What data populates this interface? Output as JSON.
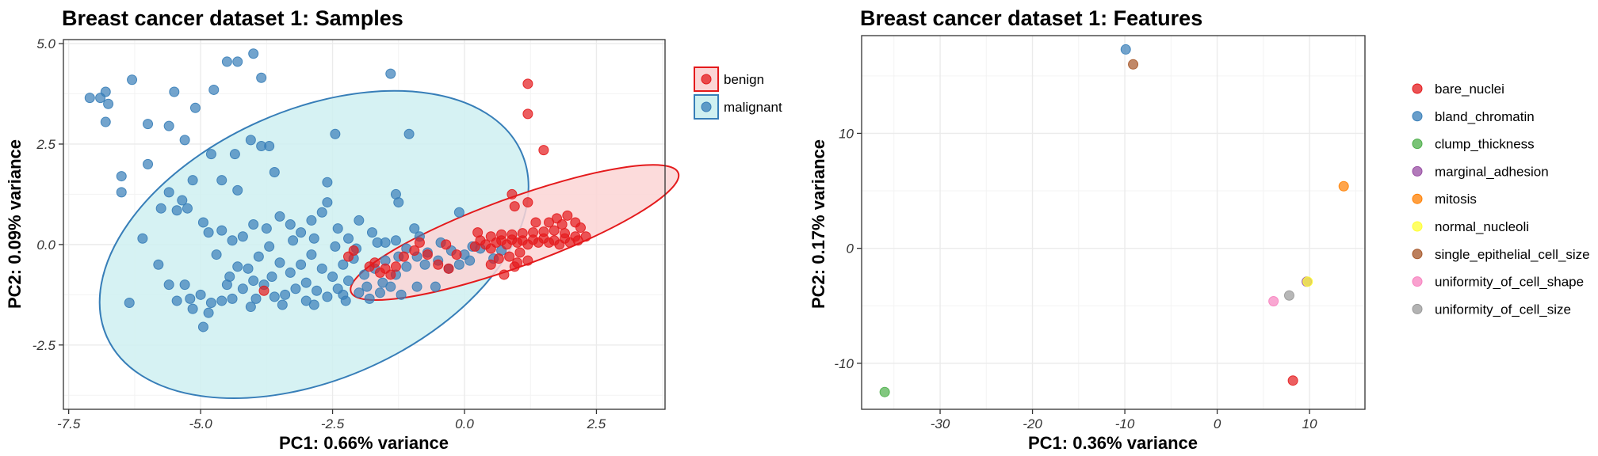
{
  "chart_data": [
    {
      "type": "scatter",
      "title": "Breast cancer dataset 1: Samples",
      "xlabel": "PC1: 0.66% variance",
      "ylabel": "PC2: 0.09% variance",
      "xlim": [
        -7.6,
        3.8
      ],
      "ylim": [
        -4.1,
        5.1
      ],
      "x_ticks": [
        -7.5,
        -5.0,
        -2.5,
        0.0,
        2.5
      ],
      "x_tick_labels": [
        "-7.5",
        "-5.0",
        "-2.5",
        "0.0",
        "2.5"
      ],
      "y_ticks": [
        -2.5,
        0.0,
        2.5,
        5.0
      ],
      "y_tick_labels": [
        "-2.5",
        "0.0",
        "2.5",
        "5.0"
      ],
      "grid": true,
      "legend_position": "right",
      "series": [
        {
          "name": "benign",
          "color": "#e41a1c",
          "fill_color": "#fbd5d5",
          "ellipse": {
            "cx": 0.95,
            "cy": 0.3,
            "rx": 3.3,
            "ry": 0.85,
            "angle_deg": -20
          },
          "points": [
            [
              1.2,
              4.0
            ],
            [
              1.2,
              3.25
            ],
            [
              1.5,
              2.35
            ],
            [
              0.9,
              1.25
            ],
            [
              1.2,
              1.05
            ],
            [
              0.95,
              0.95
            ],
            [
              1.75,
              0.65
            ],
            [
              1.95,
              0.72
            ],
            [
              1.35,
              0.55
            ],
            [
              1.6,
              0.55
            ],
            [
              1.85,
              0.5
            ],
            [
              2.1,
              0.55
            ],
            [
              2.2,
              0.42
            ],
            [
              2.3,
              0.2
            ],
            [
              2.1,
              0.2
            ],
            [
              1.9,
              0.28
            ],
            [
              1.7,
              0.35
            ],
            [
              1.5,
              0.32
            ],
            [
              1.3,
              0.3
            ],
            [
              1.1,
              0.28
            ],
            [
              0.9,
              0.25
            ],
            [
              0.7,
              0.25
            ],
            [
              0.5,
              0.2
            ],
            [
              2.0,
              0.05
            ],
            [
              1.8,
              0.0
            ],
            [
              1.6,
              0.05
            ],
            [
              1.4,
              0.05
            ],
            [
              1.2,
              0.0
            ],
            [
              1.0,
              0.05
            ],
            [
              0.8,
              0.0
            ],
            [
              0.6,
              0.05
            ],
            [
              0.4,
              0.0
            ],
            [
              0.2,
              -0.05
            ],
            [
              1.9,
              0.15
            ],
            [
              1.7,
              0.1
            ],
            [
              1.5,
              0.15
            ],
            [
              1.3,
              0.12
            ],
            [
              1.1,
              0.1
            ],
            [
              0.9,
              0.12
            ],
            [
              0.7,
              0.1
            ],
            [
              0.5,
              -0.1
            ],
            [
              0.3,
              0.1
            ],
            [
              2.15,
              0.1
            ],
            [
              1.05,
              -0.2
            ],
            [
              0.85,
              -0.3
            ],
            [
              0.65,
              -0.35
            ],
            [
              1.2,
              -0.4
            ],
            [
              1.0,
              -0.45
            ],
            [
              0.5,
              -0.5
            ],
            [
              0.95,
              -0.55
            ],
            [
              0.75,
              -0.75
            ],
            [
              -0.15,
              -0.25
            ],
            [
              -0.35,
              0.0
            ],
            [
              -0.5,
              -0.5
            ],
            [
              -0.85,
              0.05
            ],
            [
              -0.95,
              -0.15
            ],
            [
              -1.15,
              -0.3
            ],
            [
              -1.3,
              -0.55
            ],
            [
              -1.4,
              -0.75
            ],
            [
              -1.5,
              -0.6
            ],
            [
              -1.6,
              -0.7
            ],
            [
              -1.8,
              -0.55
            ],
            [
              -2.2,
              -0.3
            ],
            [
              -2.1,
              -0.15
            ],
            [
              -3.8,
              -1.15
            ],
            [
              -0.7,
              -0.25
            ],
            [
              -1.7,
              -0.45
            ],
            [
              -0.3,
              -0.6
            ],
            [
              0.25,
              0.3
            ]
          ]
        },
        {
          "name": "malignant",
          "color": "#377eb8",
          "fill_color": "#cff0f1",
          "ellipse": {
            "cx": -2.85,
            "cy": 0.0,
            "rx": 4.3,
            "ry": 3.35,
            "angle_deg": -24
          },
          "points": [
            [
              -7.1,
              3.65
            ],
            [
              -6.9,
              3.65
            ],
            [
              -6.8,
              3.8
            ],
            [
              -6.75,
              3.5
            ],
            [
              -6.8,
              3.05
            ],
            [
              -6.3,
              4.1
            ],
            [
              -5.5,
              3.8
            ],
            [
              -5.1,
              3.4
            ],
            [
              -4.75,
              3.85
            ],
            [
              -4.5,
              4.55
            ],
            [
              -4.3,
              4.55
            ],
            [
              -4.0,
              4.75
            ],
            [
              -3.85,
              4.15
            ],
            [
              -1.4,
              4.25
            ],
            [
              -6.0,
              3.0
            ],
            [
              -5.6,
              2.95
            ],
            [
              -5.3,
              2.6
            ],
            [
              -4.8,
              2.25
            ],
            [
              -4.35,
              2.25
            ],
            [
              -4.05,
              2.6
            ],
            [
              -3.85,
              2.45
            ],
            [
              -3.7,
              2.45
            ],
            [
              -2.45,
              2.75
            ],
            [
              -1.05,
              2.75
            ],
            [
              -6.5,
              1.7
            ],
            [
              -6.5,
              1.3
            ],
            [
              -6.0,
              2.0
            ],
            [
              -5.6,
              1.3
            ],
            [
              -5.35,
              1.1
            ],
            [
              -5.15,
              1.6
            ],
            [
              -4.6,
              1.6
            ],
            [
              -4.3,
              1.35
            ],
            [
              -3.6,
              1.8
            ],
            [
              -2.6,
              1.55
            ],
            [
              -2.6,
              1.05
            ],
            [
              -1.3,
              1.25
            ],
            [
              -1.25,
              1.05
            ],
            [
              -0.1,
              0.8
            ],
            [
              -5.75,
              0.9
            ],
            [
              -5.45,
              0.85
            ],
            [
              -5.25,
              0.9
            ],
            [
              -4.95,
              0.55
            ],
            [
              -4.85,
              0.3
            ],
            [
              -4.6,
              0.35
            ],
            [
              -4.4,
              0.1
            ],
            [
              -4.2,
              0.2
            ],
            [
              -4.0,
              0.5
            ],
            [
              -3.75,
              0.4
            ],
            [
              -3.5,
              0.7
            ],
            [
              -3.3,
              0.5
            ],
            [
              -3.1,
              0.3
            ],
            [
              -2.9,
              0.6
            ],
            [
              -2.7,
              0.8
            ],
            [
              -2.4,
              0.4
            ],
            [
              -2.2,
              0.15
            ],
            [
              -2.0,
              0.6
            ],
            [
              -1.75,
              0.3
            ],
            [
              -1.5,
              0.05
            ],
            [
              -1.3,
              0.1
            ],
            [
              -1.1,
              -0.1
            ],
            [
              -0.9,
              -0.3
            ],
            [
              -0.7,
              -0.2
            ],
            [
              -0.5,
              -0.4
            ],
            [
              -0.3,
              -0.6
            ],
            [
              -0.1,
              -0.5
            ],
            [
              0.1,
              -0.4
            ],
            [
              0.3,
              -0.1
            ],
            [
              -6.1,
              0.15
            ],
            [
              -5.8,
              -0.5
            ],
            [
              -5.6,
              -1.0
            ],
            [
              -5.45,
              -1.4
            ],
            [
              -5.2,
              -1.35
            ],
            [
              -5.0,
              -1.25
            ],
            [
              -4.8,
              -1.45
            ],
            [
              -4.6,
              -1.4
            ],
            [
              -4.4,
              -1.35
            ],
            [
              -4.2,
              -1.1
            ],
            [
              -4.0,
              -0.9
            ],
            [
              -3.8,
              -1.0
            ],
            [
              -3.6,
              -1.3
            ],
            [
              -3.4,
              -1.25
            ],
            [
              -3.2,
              -1.1
            ],
            [
              -3.0,
              -0.95
            ],
            [
              -2.8,
              -1.15
            ],
            [
              -2.6,
              -1.3
            ],
            [
              -2.4,
              -1.1
            ],
            [
              -2.2,
              -0.9
            ],
            [
              -2.0,
              -1.2
            ],
            [
              -1.8,
              -1.35
            ],
            [
              -1.6,
              -1.2
            ],
            [
              -1.4,
              -1.05
            ],
            [
              -1.2,
              -1.25
            ],
            [
              -0.9,
              -1.05
            ],
            [
              -0.55,
              -1.05
            ],
            [
              -6.35,
              -1.45
            ],
            [
              -5.15,
              -1.6
            ],
            [
              -4.95,
              -2.05
            ],
            [
              -4.85,
              -1.7
            ],
            [
              -4.45,
              -0.8
            ],
            [
              -4.3,
              -0.55
            ],
            [
              -4.1,
              -0.6
            ],
            [
              -3.9,
              -0.3
            ],
            [
              -3.7,
              -0.05
            ],
            [
              -3.5,
              -0.45
            ],
            [
              -3.3,
              -0.7
            ],
            [
              -3.1,
              -0.5
            ],
            [
              -2.9,
              -0.25
            ],
            [
              -2.7,
              -0.6
            ],
            [
              -2.5,
              -0.8
            ],
            [
              -2.3,
              -0.5
            ],
            [
              -2.1,
              -0.35
            ],
            [
              -1.9,
              -0.75
            ],
            [
              -1.7,
              -0.6
            ],
            [
              -1.5,
              -0.4
            ],
            [
              -1.3,
              -0.75
            ],
            [
              -1.1,
              -0.55
            ],
            [
              -3.65,
              -0.8
            ],
            [
              -3.25,
              0.1
            ],
            [
              -2.85,
              0.15
            ],
            [
              -2.45,
              -0.05
            ],
            [
              -2.05,
              -0.1
            ],
            [
              -1.65,
              0.05
            ],
            [
              -1.25,
              -0.3
            ],
            [
              -0.85,
              0.2
            ],
            [
              -4.7,
              -0.25
            ],
            [
              -4.05,
              -1.55
            ],
            [
              -3.45,
              -1.5
            ],
            [
              -2.85,
              -1.5
            ],
            [
              -2.25,
              -1.4
            ],
            [
              -1.85,
              -1.05
            ],
            [
              -3.95,
              -1.35
            ],
            [
              -0.75,
              -0.5
            ],
            [
              -0.95,
              0.4
            ],
            [
              -0.45,
              0.05
            ],
            [
              0.55,
              -0.35
            ],
            [
              0.7,
              -0.15
            ],
            [
              -4.5,
              -1.0
            ],
            [
              -3.0,
              -1.4
            ],
            [
              -2.3,
              -1.25
            ],
            [
              -1.55,
              -0.95
            ],
            [
              -5.3,
              -1.0
            ],
            [
              -0.25,
              -0.15
            ],
            [
              0.0,
              -0.25
            ],
            [
              0.15,
              -0.05
            ]
          ]
        }
      ]
    },
    {
      "type": "scatter",
      "title": "Breast cancer dataset 1: Features",
      "xlabel": "PC1: 0.36% variance",
      "ylabel": "PC2: 0.17% variance",
      "xlim": [
        -38.5,
        16.0
      ],
      "ylim": [
        -14.0,
        18.5
      ],
      "x_ticks": [
        -30,
        -20,
        -10,
        0,
        10
      ],
      "x_tick_labels": [
        "-30",
        "-20",
        "-10",
        "0",
        "10"
      ],
      "y_ticks": [
        -10,
        0,
        10
      ],
      "y_tick_labels": [
        "-10",
        "0",
        "10"
      ],
      "grid": true,
      "legend_position": "right",
      "series": [
        {
          "name": "bare_nuclei",
          "color": "#e41a1c",
          "points": [
            [
              8.2,
              -11.5
            ]
          ]
        },
        {
          "name": "bland_chromatin",
          "color": "#377eb8",
          "points": [
            [
              -9.9,
              17.3
            ]
          ]
        },
        {
          "name": "clump_thickness",
          "color": "#4daf4a",
          "points": [
            [
              -36.0,
              -12.5
            ]
          ]
        },
        {
          "name": "marginal_adhesion",
          "color": "#984ea3",
          "points": [
            [
              9.7,
              -2.9
            ]
          ]
        },
        {
          "name": "mitosis",
          "color": "#ff7f00",
          "points": [
            [
              13.7,
              5.4
            ]
          ]
        },
        {
          "name": "normal_nucleoli",
          "color": "#ffff33",
          "points": [
            [
              9.8,
              -2.9
            ]
          ]
        },
        {
          "name": "single_epithelial_cell_size",
          "color": "#a65628",
          "points": [
            [
              -9.1,
              16.0
            ]
          ]
        },
        {
          "name": "uniformity_of_cell_shape",
          "color": "#f781bf",
          "points": [
            [
              6.1,
              -4.6
            ]
          ]
        },
        {
          "name": "uniformity_of_cell_size",
          "color": "#999999",
          "points": [
            [
              7.8,
              -4.1
            ]
          ]
        }
      ]
    }
  ]
}
